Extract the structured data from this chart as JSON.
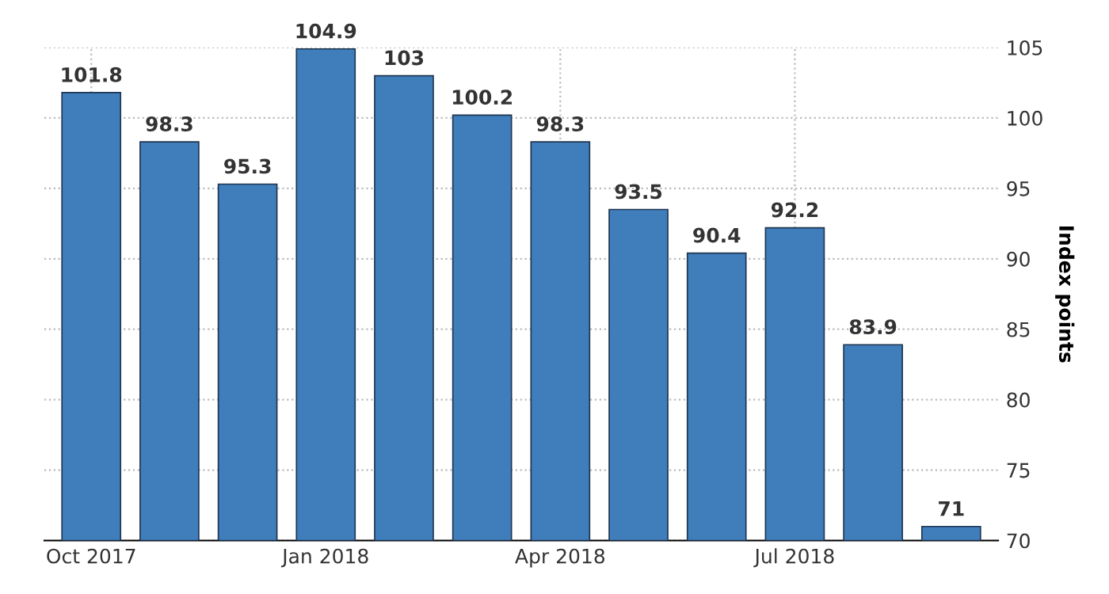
{
  "chart_data": {
    "type": "bar",
    "ylabel": "Index points",
    "categories": [
      "Oct 2017",
      null,
      null,
      "Jan 2018",
      null,
      null,
      "Apr 2018",
      null,
      null,
      "Jul 2018",
      null,
      null
    ],
    "values": [
      101.8,
      98.3,
      95.3,
      104.9,
      103,
      100.2,
      98.3,
      93.5,
      90.4,
      92.2,
      83.9,
      71
    ],
    "color": "#3f7dbb",
    "ylim": [
      70,
      105
    ],
    "yticks": [
      70,
      75,
      80,
      85,
      90,
      95,
      100,
      105
    ],
    "grid": true,
    "data_labels": true
  }
}
